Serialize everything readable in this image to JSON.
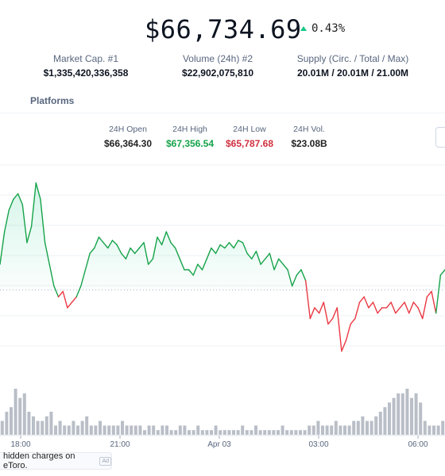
{
  "price": {
    "value": "$66,734.69",
    "change": "0.43%",
    "change_color": "#16c784"
  },
  "stats": [
    {
      "label": "Market Cap. #1",
      "value": "$1,335,420,336,358"
    },
    {
      "label": "Volume (24h) #2",
      "value": "$22,902,075,810"
    },
    {
      "label": "Supply (Circ. / Total / Max)",
      "value": "20.01M / 20.01M / 21.00M"
    }
  ],
  "tabs": {
    "platforms": "Platforms"
  },
  "ohlc": {
    "open": {
      "label": "24H Open",
      "value": "$66,364.30"
    },
    "high": {
      "label": "24H High",
      "value": "$67,356.54"
    },
    "low": {
      "label": "24H Low",
      "value": "$65,787.68"
    },
    "vol": {
      "label": "24H Vol.",
      "value": "$23.08B"
    }
  },
  "banner": {
    "text": "hidden charges on eToro.",
    "ad_tag": "Ad"
  },
  "chart_data": {
    "type": "line",
    "x_ticks": [
      "18:00",
      "21:00",
      "Apr 03",
      "03:00",
      "06:00"
    ],
    "baseline": 66364.3,
    "ylim": [
      65600,
      67500
    ],
    "grid": "horizontal",
    "colors": {
      "above": "#16a34a",
      "below": "#ea3943",
      "fill": "#16c784"
    },
    "price": [
      66600,
      66900,
      67100,
      67200,
      67250,
      67150,
      66800,
      66950,
      67350,
      67200,
      66800,
      66600,
      66400,
      66300,
      66350,
      66200,
      66250,
      66300,
      66400,
      66550,
      66700,
      66750,
      66850,
      66800,
      66750,
      66820,
      66780,
      66700,
      66650,
      66750,
      66700,
      66750,
      66800,
      66600,
      66650,
      66850,
      66780,
      66900,
      66800,
      66750,
      66650,
      66550,
      66550,
      66500,
      66600,
      66550,
      66650,
      66750,
      66700,
      66780,
      66750,
      66800,
      66750,
      66820,
      66800,
      66700,
      66650,
      66720,
      66600,
      66650,
      66700,
      66550,
      66650,
      66600,
      66550,
      66400,
      66500,
      66550,
      66450,
      66100,
      66200,
      66150,
      66250,
      66050,
      66100,
      66200,
      65800,
      65900,
      66050,
      66100,
      66250,
      66300,
      66200,
      66250,
      66150,
      66200,
      66200,
      66250,
      66150,
      66200,
      66250,
      66150,
      66250,
      66200,
      66100,
      66300,
      66350,
      66150,
      66500,
      66550
    ],
    "volume": [
      3,
      5,
      6,
      10,
      8,
      9,
      5,
      4,
      3,
      3,
      4,
      5,
      2,
      3,
      2,
      2,
      3,
      2,
      3,
      4,
      2,
      2,
      3,
      2,
      2,
      2,
      2,
      3,
      2,
      2,
      2,
      2,
      1,
      2,
      2,
      1,
      2,
      2,
      1,
      1,
      2,
      2,
      1,
      1,
      2,
      1,
      1,
      1,
      2,
      1,
      1,
      1,
      1,
      1,
      2,
      1,
      1,
      2,
      1,
      1,
      1,
      1,
      1,
      2,
      1,
      1,
      1,
      1,
      1,
      2,
      2,
      3,
      2,
      2,
      2,
      3,
      2,
      2,
      2,
      3,
      3,
      4,
      3,
      3,
      4,
      5,
      6,
      7,
      8,
      9,
      9,
      10,
      8,
      9,
      7,
      3,
      2,
      2,
      2,
      3
    ]
  }
}
